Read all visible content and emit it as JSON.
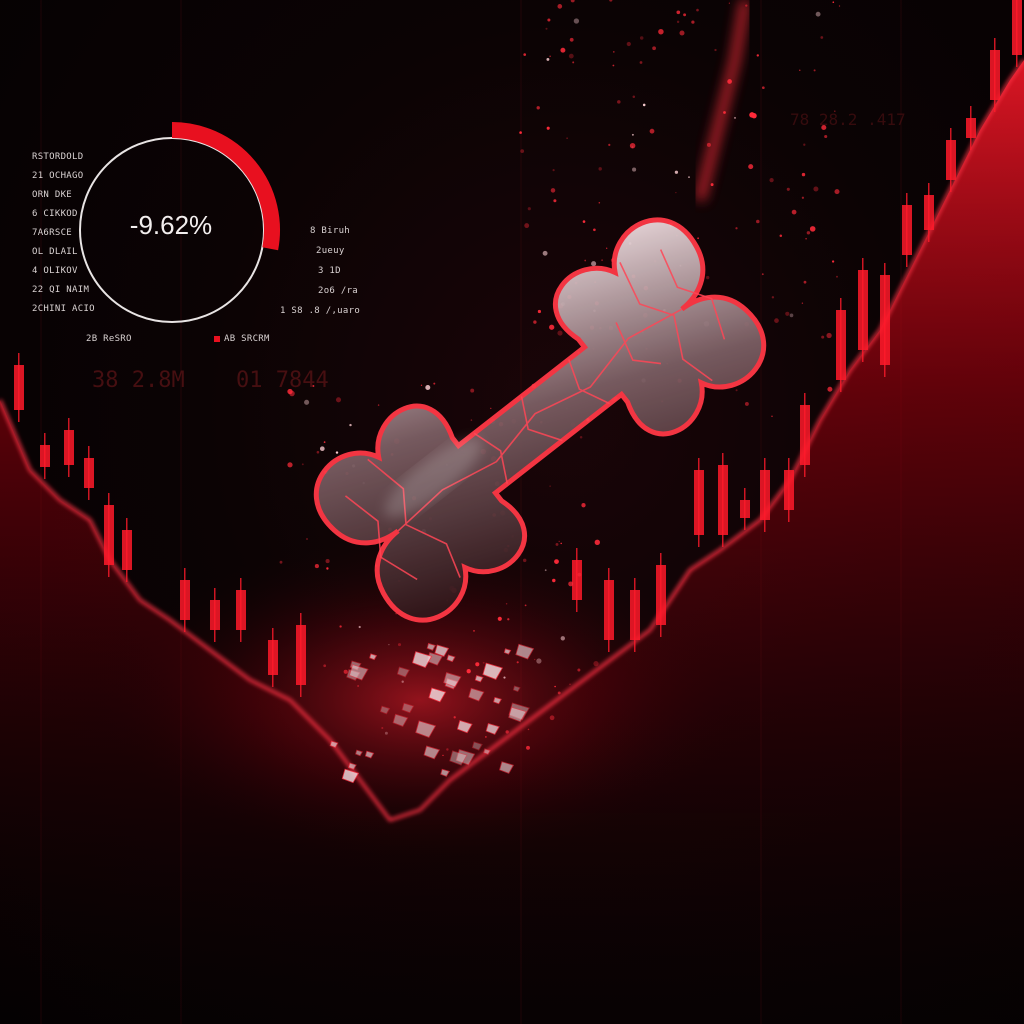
{
  "gauge": {
    "value": "-9.62%",
    "fill_fraction": 0.28
  },
  "left_labels": [
    "RSTORDOLD",
    "21 OCHAGO",
    "ORN DKE",
    "6 CIKKOD",
    "7A6RSCE",
    "OL DLAIL",
    "4 OLIKOV",
    "22 QI NAIM",
    "2CHINI ACIO"
  ],
  "right_labels": [
    "8 Biruh",
    "2ueuy",
    "3 1D",
    "2o6 /ra",
    "1 S8 .8 /,uaro"
  ],
  "footer_left": "2B ReSRO",
  "footer_right": "AB SRCRM",
  "ghost_text": {
    "row1": "38 2.8M",
    "row2": "01 7844",
    "top_right": "78 28.2 .417"
  },
  "colors": {
    "accent": "#ff1a2a",
    "glow": "#ff2d3a",
    "background": "#060203"
  },
  "icons": {
    "footer_marker": "red-square-icon",
    "centerpiece": "shattered-bone-icon"
  }
}
